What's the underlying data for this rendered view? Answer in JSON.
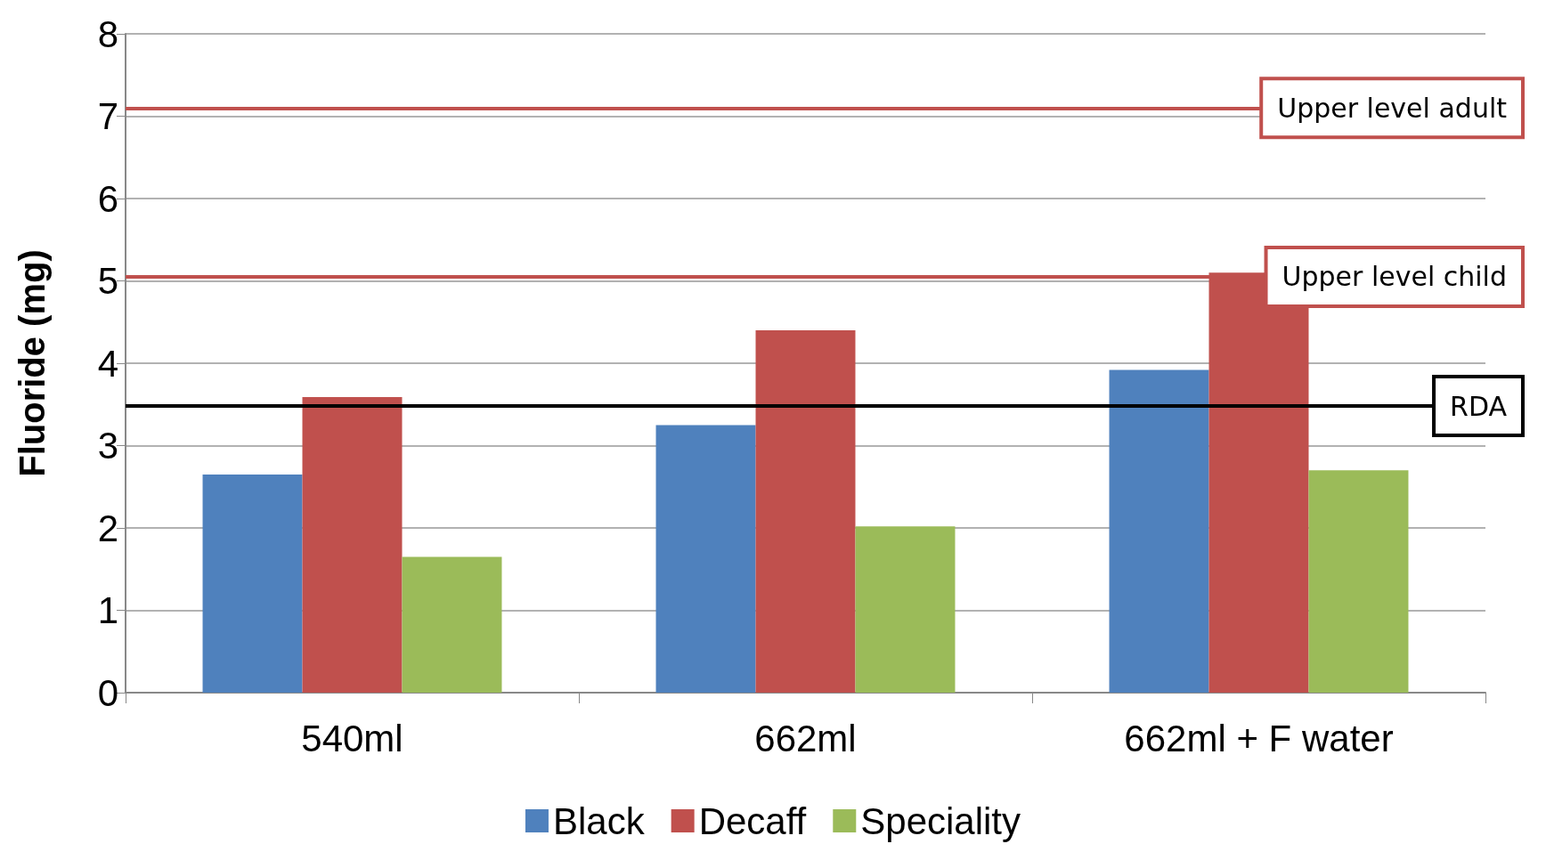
{
  "chart_data": {
    "type": "bar",
    "ylabel": "Fluoride (mg)",
    "categories": [
      "540ml",
      "662ml",
      "662ml + F water"
    ],
    "series": [
      {
        "name": "Black",
        "color": "#4f81bd",
        "values": [
          2.65,
          3.25,
          3.92
        ]
      },
      {
        "name": "Decaff",
        "color": "#c0504d",
        "values": [
          3.59,
          4.4,
          5.1
        ]
      },
      {
        "name": "Speciality",
        "color": "#9bbb59",
        "values": [
          1.65,
          2.02,
          2.7
        ]
      }
    ],
    "ylim": [
      0,
      8
    ],
    "yticks": [
      0,
      1,
      2,
      3,
      4,
      5,
      6,
      7,
      8
    ],
    "grid": "y",
    "legend": "bottom",
    "ref_lines": [
      {
        "axis": "y",
        "value": 7.1,
        "label": "Upper level adult",
        "color": "#c0504d"
      },
      {
        "axis": "y",
        "value": 5.05,
        "label": "Upper level child",
        "color": "#c0504d"
      },
      {
        "axis": "y",
        "value": 3.48,
        "label": "RDA",
        "color": "#000000"
      }
    ]
  }
}
